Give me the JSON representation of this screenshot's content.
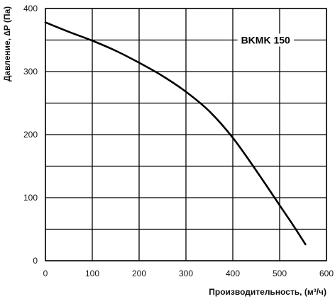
{
  "chart_data": {
    "type": "line",
    "title": "",
    "xlabel": "Производительность, (м³/ч)",
    "ylabel": "Давление, ∆P (Па)",
    "xlim": [
      0,
      600
    ],
    "ylim": [
      0,
      400
    ],
    "x_ticks": [
      0,
      100,
      200,
      300,
      400,
      500,
      600
    ],
    "y_ticks": [
      0,
      100,
      200,
      300,
      400
    ],
    "x_grid": [
      0,
      100,
      200,
      300,
      400,
      500,
      600
    ],
    "y_grid": [
      0,
      50,
      100,
      150,
      200,
      250,
      300,
      350,
      400
    ],
    "grid": true,
    "series": [
      {
        "name": "BKMK 150",
        "x": [
          0,
          50,
          100,
          150,
          200,
          250,
          300,
          350,
          400,
          450,
          500,
          530,
          555
        ],
        "y": [
          378,
          363,
          349,
          333,
          314,
          293,
          268,
          237,
          195,
          143,
          88,
          55,
          26
        ]
      }
    ]
  }
}
